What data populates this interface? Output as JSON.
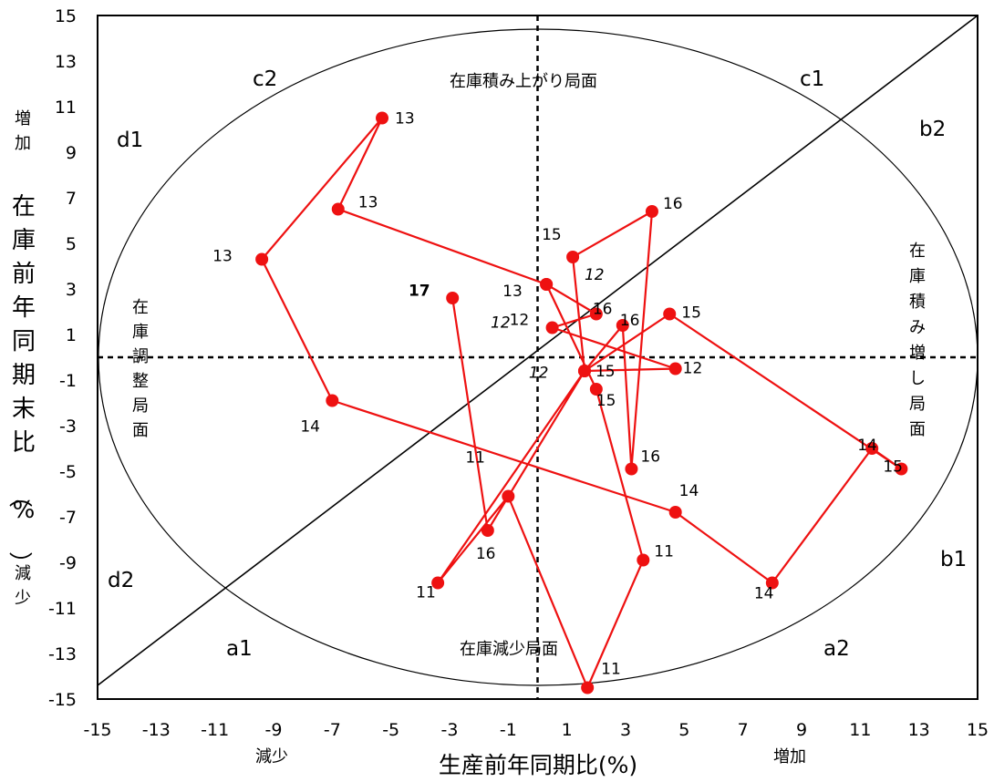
{
  "chart_data": {
    "type": "line",
    "title": "",
    "xlabel": "生産前年同期比(%)",
    "ylabel": "在庫前年同期末比（%）",
    "xlim": [
      -15,
      15
    ],
    "ylim": [
      -15,
      15
    ],
    "x_ticks": [
      "-15",
      "-13",
      "-11",
      "-9",
      "-7",
      "-5",
      "-3",
      "-1",
      "1",
      "3",
      "5",
      "7",
      "9",
      "11",
      "13",
      "15"
    ],
    "y_ticks": [
      "15",
      "13",
      "11",
      "9",
      "7",
      "5",
      "3",
      "1",
      "-1",
      "-3",
      "-5",
      "-7",
      "-9",
      "-11",
      "-13",
      "-15"
    ],
    "x_ends": {
      "decrease": "減少",
      "increase": "増加"
    },
    "y_ends": {
      "increase": "増加",
      "decrease": "減少"
    },
    "grid": false,
    "line_color": "#ee1111",
    "series": [
      {
        "points": [
          {
            "x": 0.3,
            "y": 3.2,
            "label": "13"
          },
          {
            "x": -6.8,
            "y": 6.5,
            "label": "13"
          },
          {
            "x": -5.3,
            "y": 10.5,
            "label": "13"
          },
          {
            "x": -9.4,
            "y": 4.3,
            "label": "13"
          },
          {
            "x": -7.0,
            "y": -1.9,
            "label": "14"
          },
          {
            "x": 4.7,
            "y": -6.8,
            "label": "14"
          },
          {
            "x": 8.0,
            "y": -9.9,
            "label": "14"
          },
          {
            "x": 11.4,
            "y": -4.0,
            "label": "14"
          },
          {
            "x": 12.4,
            "y": -4.9,
            "label": "15"
          },
          {
            "x": 4.5,
            "y": 1.9,
            "label": "15"
          },
          {
            "x": 1.6,
            "y": -0.6,
            "label": "15"
          },
          {
            "x": 1.2,
            "y": 4.4,
            "label": "15"
          },
          {
            "x": 3.9,
            "y": 6.4,
            "label": "16"
          },
          {
            "x": 3.2,
            "y": -4.9,
            "label": "16"
          },
          {
            "x": 2.9,
            "y": 1.4,
            "label": "16"
          },
          {
            "x": 1.6,
            "y": -0.6,
            "label": ""
          },
          {
            "x": 4.7,
            "y": -0.5,
            "label": "12"
          },
          {
            "x": 0.5,
            "y": 1.3,
            "label": "12"
          },
          {
            "x": 2.0,
            "y": 1.9,
            "label": "16"
          },
          {
            "x": 0.3,
            "y": 3.2,
            "label": ""
          },
          {
            "x": 2.0,
            "y": -1.4,
            "label": "15"
          },
          {
            "x": 3.6,
            "y": -8.9,
            "label": "11"
          },
          {
            "x": 1.7,
            "y": -14.5,
            "label": "11"
          },
          {
            "x": -1.0,
            "y": -6.1,
            "label": "11"
          },
          {
            "x": -3.4,
            "y": -9.9,
            "label": "11"
          },
          {
            "x": 1.6,
            "y": -0.6,
            "label": ""
          },
          {
            "x": -1.7,
            "y": -7.6,
            "label": "16"
          },
          {
            "x": -2.9,
            "y": 2.6,
            "label": ""
          }
        ]
      }
    ],
    "extra_labels": [
      {
        "text": "12",
        "x": 1.6,
        "y": 3.4,
        "italic": true
      },
      {
        "text": "12",
        "x": -1.6,
        "y": 1.3,
        "italic": true
      },
      {
        "text": "12",
        "x": -0.3,
        "y": -0.9,
        "italic": true
      },
      {
        "text": "17",
        "x": -4.4,
        "y": 2.7,
        "bold": true
      }
    ]
  },
  "quadrants": {
    "a1": "a1",
    "a2": "a2",
    "b1": "b1",
    "b2": "b2",
    "c1": "c1",
    "c2": "c2",
    "d1": "d1",
    "d2": "d2"
  },
  "phases": {
    "top": "在庫積み上がり局面",
    "bottom": "在庫減少局面",
    "left": "在庫調整局面",
    "right": "在庫積み増し局面"
  }
}
